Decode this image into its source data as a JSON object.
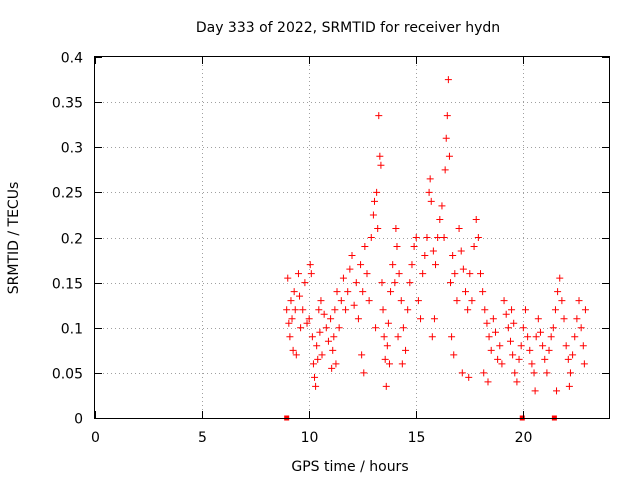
{
  "chart_data": {
    "type": "scatter",
    "title": "Day 333 of 2022, SRMTID for receiver hydn",
    "xlabel": "GPS time / hours",
    "ylabel": "SRMTID / TECUs",
    "xlim": [
      0,
      24
    ],
    "ylim": [
      0,
      0.4
    ],
    "xticks": [
      0,
      5,
      10,
      15,
      20
    ],
    "xtick_labels": [
      "0",
      "5",
      "10",
      "15",
      "20"
    ],
    "yticks": [
      0,
      0.05,
      0.1,
      0.15,
      0.2,
      0.25,
      0.3,
      0.35,
      0.4
    ],
    "ytick_labels": [
      "0",
      "0.05",
      "0.1",
      "0.15",
      "0.2",
      "0.25",
      "0.3",
      "0.35",
      "0.4"
    ],
    "grid": true,
    "colors": {
      "series": "#ff0000",
      "grid": "#a0a0a0",
      "axis": "#000000"
    },
    "series": [
      {
        "name": "SRMTID",
        "marker": "plus",
        "points": [
          [
            8.95,
            0.12
          ],
          [
            9.0,
            0.155
          ],
          [
            9.05,
            0.105
          ],
          [
            9.1,
            0.09
          ],
          [
            9.15,
            0.13
          ],
          [
            9.2,
            0.11
          ],
          [
            9.25,
            0.075
          ],
          [
            9.3,
            0.14
          ],
          [
            9.35,
            0.12
          ],
          [
            9.4,
            0.07
          ],
          [
            9.5,
            0.16
          ],
          [
            9.55,
            0.135
          ],
          [
            9.6,
            0.1
          ],
          [
            9.7,
            0.12
          ],
          [
            9.8,
            0.15
          ],
          [
            9.9,
            0.105
          ],
          [
            10.0,
            0.11
          ],
          [
            10.05,
            0.17
          ],
          [
            10.1,
            0.16
          ],
          [
            10.15,
            0.09
          ],
          [
            10.2,
            0.06
          ],
          [
            10.25,
            0.045
          ],
          [
            10.3,
            0.035
          ],
          [
            10.35,
            0.08
          ],
          [
            10.4,
            0.065
          ],
          [
            10.5,
            0.095
          ],
          [
            10.6,
            0.07
          ],
          [
            10.7,
            0.115
          ],
          [
            10.8,
            0.1
          ],
          [
            10.9,
            0.085
          ],
          [
            11.0,
            0.11
          ],
          [
            11.05,
            0.055
          ],
          [
            11.1,
            0.075
          ],
          [
            11.2,
            0.12
          ],
          [
            11.3,
            0.14
          ],
          [
            11.4,
            0.1
          ],
          [
            11.5,
            0.13
          ],
          [
            11.6,
            0.155
          ],
          [
            11.7,
            0.12
          ],
          [
            11.8,
            0.14
          ],
          [
            11.9,
            0.165
          ],
          [
            12.0,
            0.18
          ],
          [
            12.1,
            0.125
          ],
          [
            12.2,
            0.15
          ],
          [
            12.3,
            0.11
          ],
          [
            12.4,
            0.17
          ],
          [
            12.5,
            0.14
          ],
          [
            12.6,
            0.19
          ],
          [
            12.7,
            0.16
          ],
          [
            12.8,
            0.13
          ],
          [
            12.9,
            0.2
          ],
          [
            13.0,
            0.225
          ],
          [
            13.05,
            0.24
          ],
          [
            13.1,
            0.1
          ],
          [
            13.15,
            0.25
          ],
          [
            13.2,
            0.21
          ],
          [
            13.25,
            0.335
          ],
          [
            13.3,
            0.29
          ],
          [
            13.35,
            0.28
          ],
          [
            13.4,
            0.15
          ],
          [
            13.45,
            0.12
          ],
          [
            13.5,
            0.09
          ],
          [
            13.55,
            0.065
          ],
          [
            13.6,
            0.035
          ],
          [
            13.65,
            0.08
          ],
          [
            13.7,
            0.105
          ],
          [
            13.8,
            0.14
          ],
          [
            13.9,
            0.17
          ],
          [
            14.0,
            0.15
          ],
          [
            14.05,
            0.21
          ],
          [
            14.1,
            0.19
          ],
          [
            14.2,
            0.16
          ],
          [
            14.3,
            0.13
          ],
          [
            14.4,
            0.1
          ],
          [
            14.5,
            0.075
          ],
          [
            14.6,
            0.12
          ],
          [
            14.7,
            0.15
          ],
          [
            14.8,
            0.17
          ],
          [
            14.9,
            0.19
          ],
          [
            15.0,
            0.2
          ],
          [
            15.1,
            0.13
          ],
          [
            15.2,
            0.11
          ],
          [
            15.3,
            0.16
          ],
          [
            15.4,
            0.18
          ],
          [
            15.5,
            0.2
          ],
          [
            15.6,
            0.25
          ],
          [
            15.65,
            0.265
          ],
          [
            15.7,
            0.24
          ],
          [
            15.8,
            0.185
          ],
          [
            15.9,
            0.17
          ],
          [
            16.0,
            0.2
          ],
          [
            16.1,
            0.22
          ],
          [
            16.2,
            0.235
          ],
          [
            16.3,
            0.2
          ],
          [
            16.35,
            0.275
          ],
          [
            16.4,
            0.31
          ],
          [
            16.45,
            0.335
          ],
          [
            16.5,
            0.375
          ],
          [
            16.55,
            0.29
          ],
          [
            16.6,
            0.15
          ],
          [
            16.7,
            0.18
          ],
          [
            16.8,
            0.16
          ],
          [
            16.9,
            0.13
          ],
          [
            17.0,
            0.21
          ],
          [
            17.1,
            0.185
          ],
          [
            17.2,
            0.165
          ],
          [
            17.3,
            0.14
          ],
          [
            17.4,
            0.12
          ],
          [
            17.5,
            0.16
          ],
          [
            17.6,
            0.13
          ],
          [
            17.7,
            0.19
          ],
          [
            17.8,
            0.22
          ],
          [
            17.9,
            0.2
          ],
          [
            18.0,
            0.16
          ],
          [
            18.1,
            0.14
          ],
          [
            18.2,
            0.12
          ],
          [
            18.3,
            0.105
          ],
          [
            18.4,
            0.09
          ],
          [
            18.5,
            0.075
          ],
          [
            18.6,
            0.11
          ],
          [
            18.7,
            0.095
          ],
          [
            18.8,
            0.065
          ],
          [
            18.9,
            0.08
          ],
          [
            19.0,
            0.06
          ],
          [
            19.1,
            0.13
          ],
          [
            19.2,
            0.115
          ],
          [
            19.3,
            0.1
          ],
          [
            19.4,
            0.085
          ],
          [
            19.5,
            0.07
          ],
          [
            19.6,
            0.05
          ],
          [
            19.7,
            0.04
          ],
          [
            19.8,
            0.065
          ],
          [
            19.9,
            0.08
          ],
          [
            20.0,
            0.1
          ],
          [
            20.1,
            0.12
          ],
          [
            20.2,
            0.09
          ],
          [
            20.3,
            0.075
          ],
          [
            20.4,
            0.06
          ],
          [
            20.5,
            0.05
          ],
          [
            20.6,
            0.09
          ],
          [
            20.7,
            0.11
          ],
          [
            20.8,
            0.095
          ],
          [
            20.9,
            0.08
          ],
          [
            21.0,
            0.065
          ],
          [
            21.1,
            0.05
          ],
          [
            21.2,
            0.075
          ],
          [
            21.3,
            0.09
          ],
          [
            21.4,
            0.1
          ],
          [
            21.5,
            0.12
          ],
          [
            21.6,
            0.14
          ],
          [
            21.7,
            0.155
          ],
          [
            21.8,
            0.13
          ],
          [
            21.9,
            0.11
          ],
          [
            22.0,
            0.08
          ],
          [
            22.1,
            0.065
          ],
          [
            22.2,
            0.05
          ],
          [
            22.3,
            0.07
          ],
          [
            22.4,
            0.09
          ],
          [
            22.5,
            0.11
          ],
          [
            22.6,
            0.13
          ],
          [
            22.7,
            0.1
          ],
          [
            22.8,
            0.08
          ],
          [
            22.85,
            0.06
          ],
          [
            22.9,
            0.12
          ],
          [
            12.45,
            0.07
          ],
          [
            12.55,
            0.05
          ],
          [
            13.75,
            0.06
          ],
          [
            14.15,
            0.09
          ],
          [
            14.35,
            0.06
          ],
          [
            16.65,
            0.09
          ],
          [
            16.75,
            0.07
          ],
          [
            17.15,
            0.05
          ],
          [
            15.75,
            0.09
          ],
          [
            15.85,
            0.11
          ],
          [
            10.45,
            0.12
          ],
          [
            10.55,
            0.13
          ],
          [
            11.15,
            0.09
          ],
          [
            11.25,
            0.06
          ],
          [
            18.15,
            0.05
          ],
          [
            18.35,
            0.04
          ],
          [
            20.55,
            0.03
          ],
          [
            21.55,
            0.03
          ],
          [
            22.15,
            0.035
          ],
          [
            19.45,
            0.12
          ],
          [
            19.55,
            0.105
          ],
          [
            17.45,
            0.045
          ]
        ],
        "zero_markers": [
          [
            8.95,
            0
          ],
          [
            19.95,
            0
          ],
          [
            21.45,
            0
          ]
        ]
      }
    ]
  }
}
